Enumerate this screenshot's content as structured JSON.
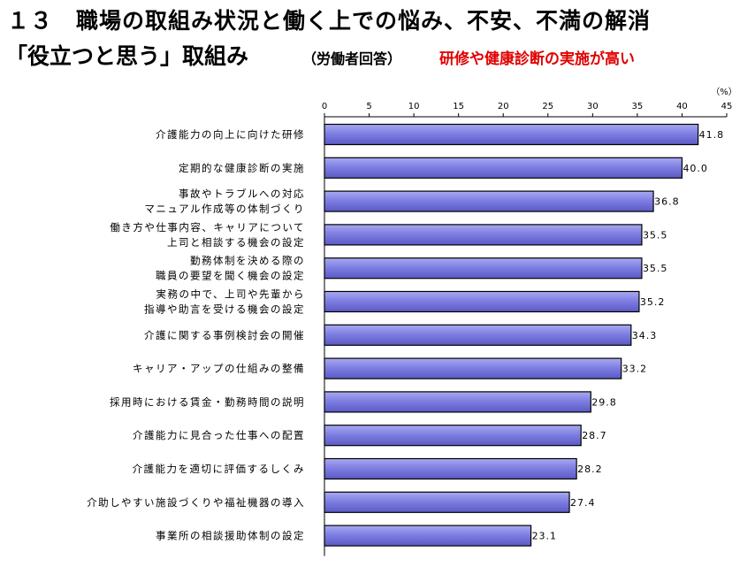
{
  "header": {
    "title_line1": "１３　職場の取組み状況と働く上での悩み、不安、不満の解消",
    "title_line2": "「役立つと思う」取組み",
    "respondent_note": "（労働者回答）",
    "highlight_note": "研修や健康診断の実施が高い"
  },
  "chart_data": {
    "type": "bar",
    "orientation": "horizontal",
    "unit_label": "（%）",
    "xlim": [
      0,
      45
    ],
    "ticks": [
      0,
      5,
      10,
      15,
      20,
      25,
      30,
      35,
      40,
      45
    ],
    "grid": false,
    "categories": [
      [
        "介護能力の向上に向けた研修"
      ],
      [
        "定期的な健康診断の実施"
      ],
      [
        "事故やトラブルへの対応",
        "マニュアル作成等の体制づくり"
      ],
      [
        "働き方や仕事内容、キャリアについて",
        "上司と相談する機会の設定"
      ],
      [
        "勤務体制を決める際の",
        "職員の要望を聞く機会の設定"
      ],
      [
        "実務の中で、上司や先輩から",
        "指導や助言を受ける機会の設定"
      ],
      [
        "介護に関する事例検討会の開催"
      ],
      [
        "キャリア・アップの仕組みの整備"
      ],
      [
        "採用時における賃金・勤務時間の説明"
      ],
      [
        "介護能力に見合った仕事への配置"
      ],
      [
        "介護能力を適切に評価するしくみ"
      ],
      [
        "介助しやすい施設づくりや福祉機器の導入"
      ],
      [
        "事業所の相談援助体制の設定"
      ]
    ],
    "values": [
      41.8,
      40.0,
      36.8,
      35.5,
      35.5,
      35.2,
      34.3,
      33.2,
      29.8,
      28.7,
      28.2,
      27.4,
      23.1
    ],
    "value_labels": [
      "41.8",
      "40.0",
      "36.8",
      "35.5",
      "35.5",
      "35.2",
      "34.3",
      "33.2",
      "29.8",
      "28.7",
      "28.2",
      "27.4",
      "23.1"
    ],
    "bar_color": "#7b7be0",
    "bar_border": "#000000"
  }
}
